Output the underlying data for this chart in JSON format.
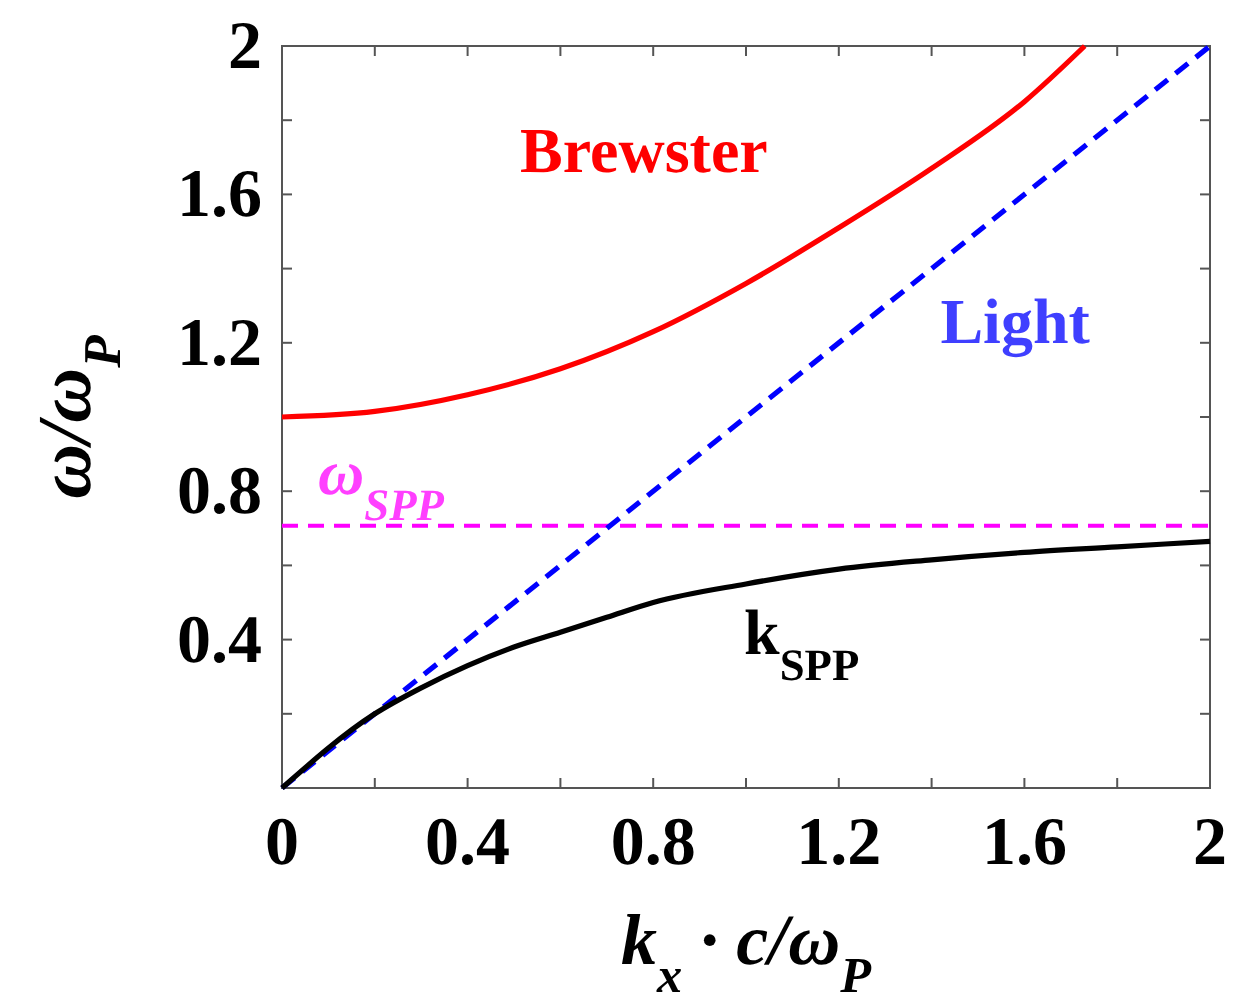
{
  "chart_data": {
    "type": "line",
    "xlabel": "k$_{x}$ · c/ω$_{P}$",
    "ylabel": "ω/ω$_{P}$",
    "xlim": [
      0,
      2
    ],
    "ylim": [
      0,
      2
    ],
    "xticks": [
      0,
      {
        "value": 0.2,
        "label": null
      },
      0.4,
      {
        "value": 0.6,
        "label": null
      },
      0.8,
      {
        "value": 1.0,
        "label": null
      },
      1.2,
      {
        "value": 1.4,
        "label": null
      },
      1.6,
      {
        "value": 1.8,
        "label": null
      },
      2
    ],
    "yticks": [
      {
        "value": 0,
        "label": null
      },
      {
        "value": 0.2,
        "label": null
      },
      0.4,
      {
        "value": 0.6,
        "label": null
      },
      0.8,
      {
        "value": 1.0,
        "label": null
      },
      1.2,
      {
        "value": 1.4,
        "label": null
      },
      1.6,
      {
        "value": 1.8,
        "label": null
      },
      2
    ],
    "grid": false,
    "series": [
      {
        "name": "Brewster",
        "color": "#ff0000",
        "line_style": "solid",
        "x": [
          0,
          0.2,
          0.4,
          0.6,
          0.8,
          1.0,
          1.2,
          1.4,
          1.6,
          1.73
        ],
        "values": [
          1.0,
          1.015,
          1.06,
          1.13,
          1.23,
          1.36,
          1.51,
          1.67,
          1.85,
          2.0
        ]
      },
      {
        "name": "Light",
        "color": "#0000ff",
        "line_style": "dashed",
        "x": [
          0,
          2
        ],
        "values": [
          0,
          2
        ]
      },
      {
        "name": "k$_{SPP}$",
        "color": "#000000",
        "line_style": "solid",
        "x": [
          0,
          0.2,
          0.3,
          0.4,
          0.5,
          0.6,
          0.7,
          0.8,
          1.0,
          1.2,
          1.4,
          1.6,
          1.8,
          2.0
        ],
        "values": [
          0,
          0.2,
          0.27,
          0.33,
          0.38,
          0.42,
          0.46,
          0.5,
          0.55,
          0.59,
          0.615,
          0.635,
          0.65,
          0.665
        ]
      }
    ],
    "ref_lines": [
      {
        "axis": "y",
        "value": 0.707,
        "label": "ω$_{SPP}$",
        "color": "#ff00ff",
        "line_style": "dashed"
      }
    ]
  }
}
